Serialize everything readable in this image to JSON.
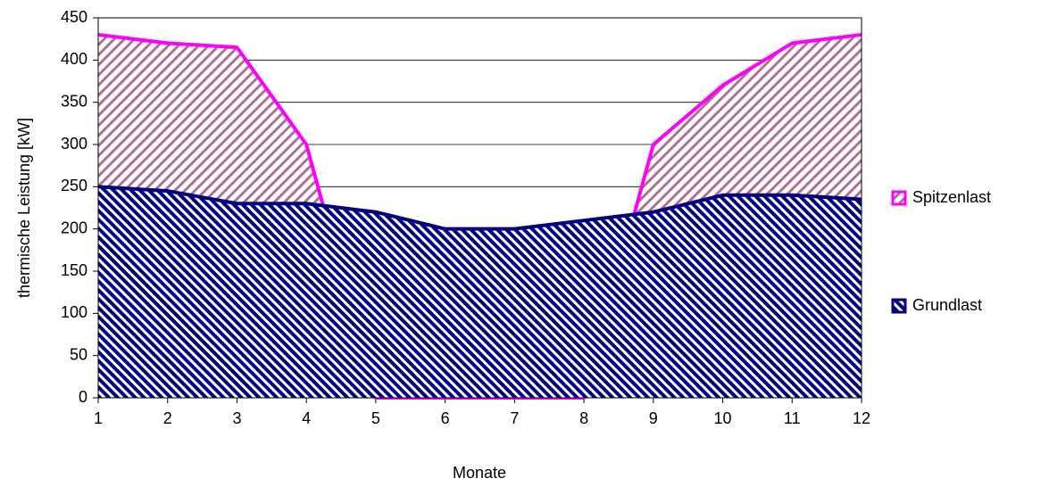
{
  "chart_data": {
    "type": "area",
    "y_label": "thermische Leistung [kW]",
    "x_label": "Monate",
    "x": [
      1,
      2,
      3,
      4,
      5,
      6,
      7,
      8,
      9,
      10,
      11,
      12
    ],
    "series": [
      {
        "name": "Spitzenlast",
        "color": "#ff00ff",
        "values": [
          430,
          420,
          415,
          300,
          0,
          0,
          0,
          0,
          300,
          370,
          420,
          430
        ]
      },
      {
        "name": "Grundlast",
        "color": "#000080",
        "values": [
          250,
          245,
          230,
          230,
          220,
          200,
          200,
          210,
          220,
          240,
          240,
          235
        ]
      }
    ],
    "xlim": [
      1,
      12
    ],
    "xticks": [
      1,
      2,
      3,
      4,
      5,
      6,
      7,
      8,
      9,
      10,
      11,
      12
    ],
    "ylim": [
      0,
      450
    ],
    "yticks": [
      0,
      50,
      100,
      150,
      200,
      250,
      300,
      350,
      400,
      450
    ],
    "grid": true,
    "legend": "right"
  }
}
